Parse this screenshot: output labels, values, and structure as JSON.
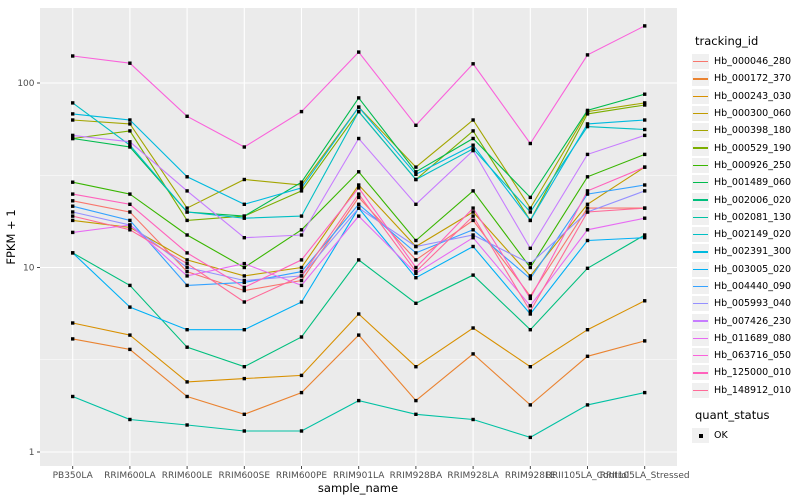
{
  "chart_data": {
    "type": "line",
    "title": "",
    "xlabel": "sample_name",
    "ylabel": "FPKM + 1",
    "y_scale": "log10",
    "y_ticks": [
      1,
      10,
      100
    ],
    "y_tick_labels": [
      "1",
      "10",
      "100"
    ],
    "y_minor_breaks": [
      3.162,
      31.62
    ],
    "ylim": [
      1,
      250
    ],
    "grid": true,
    "x_categories": [
      "PB350LA",
      "RRIM600LA",
      "RRIM600LE",
      "RRIM600SE",
      "RRIM600PE",
      "RRIM901LA",
      "RRIM928BA",
      "RRIM928LA",
      "RRIM928LE",
      "RRII105LA_Control",
      "RRII105LA_Stressed"
    ],
    "series": [
      {
        "name": "Hb_000046_280",
        "color": "#F8766D",
        "values": [
          23,
          20,
          9.5,
          7.5,
          8.5,
          24,
          11,
          18,
          7,
          21,
          21
        ]
      },
      {
        "name": "Hb_000172_370",
        "color": "#EA8331",
        "values": [
          4.1,
          3.6,
          2.0,
          1.6,
          2.1,
          4.3,
          1.9,
          3.4,
          1.8,
          3.3,
          4.0
        ]
      },
      {
        "name": "Hb_000243_030",
        "color": "#D89000",
        "values": [
          5.0,
          4.3,
          2.4,
          2.5,
          2.6,
          5.6,
          2.9,
          4.7,
          2.9,
          4.6,
          6.6
        ]
      },
      {
        "name": "Hb_000300_060",
        "color": "#C09B00",
        "values": [
          18,
          16.5,
          11,
          9,
          10,
          28,
          13,
          20,
          9,
          22,
          35
        ]
      },
      {
        "name": "Hb_000398_180",
        "color": "#A3A500",
        "values": [
          63,
          60,
          21,
          30,
          28,
          74,
          35,
          63,
          21,
          70,
          78
        ]
      },
      {
        "name": "Hb_000529_190",
        "color": "#7CAE00",
        "values": [
          50,
          55,
          18,
          19,
          26,
          70,
          30,
          55,
          18,
          68,
          76
        ]
      },
      {
        "name": "Hb_000926_250",
        "color": "#39B600",
        "values": [
          29,
          25,
          15,
          10,
          16,
          33,
          14,
          26,
          10,
          31,
          41
        ]
      },
      {
        "name": "Hb_001489_060",
        "color": "#00BB4E",
        "values": [
          50,
          45,
          20,
          19,
          29,
          83,
          33,
          50,
          24,
          71,
          87
        ]
      },
      {
        "name": "Hb_002006_020",
        "color": "#00BF7D",
        "values": [
          12,
          8,
          3.7,
          2.9,
          4.2,
          11,
          6.4,
          9.1,
          4.6,
          9.9,
          15
        ]
      },
      {
        "name": "Hb_002081_130",
        "color": "#00C1A3",
        "values": [
          2.0,
          1.5,
          1.4,
          1.3,
          1.3,
          1.9,
          1.6,
          1.5,
          1.2,
          1.8,
          2.1
        ]
      },
      {
        "name": "Hb_002149_020",
        "color": "#00BFC4",
        "values": [
          78,
          46,
          20,
          18.5,
          19,
          70,
          30,
          44,
          20,
          58,
          56
        ]
      },
      {
        "name": "Hb_002391_300",
        "color": "#00BADE",
        "values": [
          68,
          63,
          31,
          22,
          27,
          74,
          32,
          46,
          18,
          60,
          63
        ]
      },
      {
        "name": "Hb_003005_020",
        "color": "#00B0F6",
        "values": [
          12,
          6.1,
          4.6,
          4.6,
          6.5,
          21,
          8.8,
          13,
          5.6,
          14,
          14.5
        ]
      },
      {
        "name": "Hb_004440_090",
        "color": "#35A2FF",
        "values": [
          21.5,
          18,
          8,
          8.3,
          9.5,
          22,
          12,
          16,
          8.7,
          25,
          28
        ]
      },
      {
        "name": "Hb_005993_040",
        "color": "#9590FF",
        "values": [
          20,
          17,
          10,
          8.5,
          9,
          21,
          13,
          15,
          10.5,
          20,
          26
        ]
      },
      {
        "name": "Hb_007426_230",
        "color": "#C77CFF",
        "values": [
          52,
          48,
          26,
          14.5,
          15,
          50,
          22,
          43,
          12.7,
          41,
          52
        ]
      },
      {
        "name": "Hb_011689_080",
        "color": "#E76BF3",
        "values": [
          15.5,
          17,
          9,
          10.5,
          8,
          19,
          9.3,
          14.5,
          6.2,
          16,
          18.5
        ]
      },
      {
        "name": "Hb_063716_050",
        "color": "#FA62DB",
        "values": [
          140,
          128,
          66,
          45,
          70,
          147,
          59,
          127,
          47,
          142,
          204
        ]
      },
      {
        "name": "Hb_125000_010",
        "color": "#FF62BC",
        "values": [
          25,
          22,
          12,
          7.8,
          11,
          27,
          10,
          21,
          6.8,
          26,
          35
        ]
      },
      {
        "name": "Hb_148912_010",
        "color": "#FF6A98",
        "values": [
          19,
          16,
          10.5,
          6.5,
          9,
          25,
          9.5,
          19,
          5.8,
          20,
          21
        ]
      }
    ],
    "legend": {
      "position": "right",
      "color_title": "tracking_id",
      "shape_title": "quant_status",
      "shape_items": [
        {
          "label": "OK",
          "marker": "black-square"
        }
      ]
    },
    "style": {
      "panel_bg": "#EBEBEB",
      "grid_major": "#FFFFFF",
      "grid_minor": "#FFFFFF",
      "point_color": "#000000",
      "axis_text": "#4D4D4D",
      "tick_mark": "#333333",
      "legend_key_bg": "#F0F0F0"
    }
  }
}
